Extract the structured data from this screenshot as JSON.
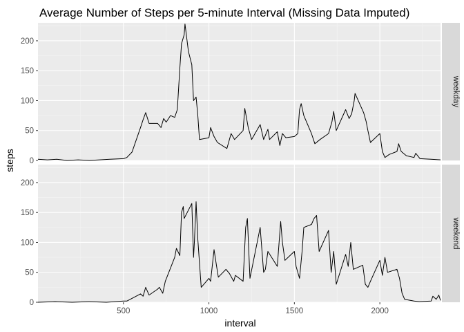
{
  "chart_data": {
    "type": "line",
    "title": "Average Number of Steps per 5-minute Interval (Missing Data Imputed)",
    "xlabel": "interval",
    "ylabel": "steps",
    "xlim": [
      0,
      2355
    ],
    "ylim": [
      0,
      230
    ],
    "x_ticks": [
      500,
      1000,
      1500,
      2000
    ],
    "y_ticks": [
      0,
      50,
      100,
      150,
      200
    ],
    "grid": true,
    "facet": "rows",
    "colors": {
      "panel_bg": "#ebebeb",
      "grid_major": "#ffffff",
      "grid_minor": "#f5f5f5",
      "strip_bg": "#d9d9d9",
      "line": "#000000"
    },
    "series": [
      {
        "name": "weekday",
        "points": [
          [
            0,
            2
          ],
          [
            55,
            1
          ],
          [
            110,
            2
          ],
          [
            170,
            0
          ],
          [
            235,
            1
          ],
          [
            300,
            0
          ],
          [
            360,
            1
          ],
          [
            420,
            2
          ],
          [
            500,
            3
          ],
          [
            520,
            5
          ],
          [
            550,
            14
          ],
          [
            600,
            55
          ],
          [
            615,
            68
          ],
          [
            630,
            80
          ],
          [
            650,
            62
          ],
          [
            700,
            62
          ],
          [
            720,
            55
          ],
          [
            735,
            70
          ],
          [
            750,
            64
          ],
          [
            775,
            75
          ],
          [
            800,
            72
          ],
          [
            815,
            85
          ],
          [
            830,
            155
          ],
          [
            840,
            195
          ],
          [
            850,
            205
          ],
          [
            855,
            210
          ],
          [
            860,
            228
          ],
          [
            870,
            205
          ],
          [
            880,
            182
          ],
          [
            900,
            160
          ],
          [
            910,
            100
          ],
          [
            925,
            106
          ],
          [
            935,
            75
          ],
          [
            945,
            35
          ],
          [
            1000,
            38
          ],
          [
            1010,
            55
          ],
          [
            1030,
            40
          ],
          [
            1050,
            30
          ],
          [
            1105,
            20
          ],
          [
            1130,
            45
          ],
          [
            1150,
            35
          ],
          [
            1200,
            50
          ],
          [
            1210,
            87
          ],
          [
            1230,
            55
          ],
          [
            1250,
            35
          ],
          [
            1300,
            60
          ],
          [
            1320,
            35
          ],
          [
            1345,
            52
          ],
          [
            1355,
            35
          ],
          [
            1400,
            48
          ],
          [
            1415,
            25
          ],
          [
            1430,
            45
          ],
          [
            1450,
            38
          ],
          [
            1500,
            40
          ],
          [
            1520,
            45
          ],
          [
            1530,
            85
          ],
          [
            1540,
            95
          ],
          [
            1555,
            75
          ],
          [
            1600,
            45
          ],
          [
            1620,
            28
          ],
          [
            1650,
            35
          ],
          [
            1700,
            45
          ],
          [
            1720,
            65
          ],
          [
            1730,
            82
          ],
          [
            1745,
            50
          ],
          [
            1800,
            85
          ],
          [
            1820,
            70
          ],
          [
            1835,
            78
          ],
          [
            1850,
            100
          ],
          [
            1855,
            112
          ],
          [
            1905,
            80
          ],
          [
            1920,
            65
          ],
          [
            1930,
            50
          ],
          [
            1945,
            30
          ],
          [
            2000,
            45
          ],
          [
            2015,
            15
          ],
          [
            2030,
            5
          ],
          [
            2055,
            10
          ],
          [
            2100,
            15
          ],
          [
            2110,
            28
          ],
          [
            2125,
            15
          ],
          [
            2155,
            8
          ],
          [
            2200,
            5
          ],
          [
            2210,
            12
          ],
          [
            2235,
            3
          ],
          [
            2300,
            2
          ],
          [
            2355,
            1
          ]
        ]
      },
      {
        "name": "weekend",
        "points": [
          [
            0,
            0
          ],
          [
            100,
            1
          ],
          [
            200,
            0
          ],
          [
            300,
            1
          ],
          [
            400,
            0
          ],
          [
            500,
            2
          ],
          [
            520,
            2
          ],
          [
            540,
            5
          ],
          [
            600,
            14
          ],
          [
            615,
            10
          ],
          [
            630,
            25
          ],
          [
            650,
            12
          ],
          [
            700,
            22
          ],
          [
            710,
            25
          ],
          [
            730,
            15
          ],
          [
            745,
            35
          ],
          [
            800,
            75
          ],
          [
            810,
            90
          ],
          [
            830,
            78
          ],
          [
            840,
            150
          ],
          [
            850,
            160
          ],
          [
            855,
            140
          ],
          [
            900,
            165
          ],
          [
            910,
            75
          ],
          [
            915,
            100
          ],
          [
            925,
            168
          ],
          [
            935,
            105
          ],
          [
            955,
            25
          ],
          [
            1000,
            40
          ],
          [
            1010,
            35
          ],
          [
            1030,
            88
          ],
          [
            1045,
            60
          ],
          [
            1055,
            42
          ],
          [
            1100,
            55
          ],
          [
            1120,
            48
          ],
          [
            1145,
            35
          ],
          [
            1155,
            45
          ],
          [
            1200,
            35
          ],
          [
            1215,
            125
          ],
          [
            1225,
            140
          ],
          [
            1240,
            40
          ],
          [
            1300,
            125
          ],
          [
            1320,
            50
          ],
          [
            1330,
            55
          ],
          [
            1345,
            85
          ],
          [
            1400,
            60
          ],
          [
            1420,
            135
          ],
          [
            1430,
            100
          ],
          [
            1445,
            70
          ],
          [
            1500,
            85
          ],
          [
            1510,
            60
          ],
          [
            1530,
            40
          ],
          [
            1545,
            85
          ],
          [
            1555,
            125
          ],
          [
            1600,
            130
          ],
          [
            1615,
            140
          ],
          [
            1630,
            145
          ],
          [
            1645,
            85
          ],
          [
            1700,
            120
          ],
          [
            1715,
            50
          ],
          [
            1730,
            85
          ],
          [
            1745,
            30
          ],
          [
            1800,
            80
          ],
          [
            1815,
            60
          ],
          [
            1830,
            100
          ],
          [
            1845,
            55
          ],
          [
            1900,
            62
          ],
          [
            1915,
            30
          ],
          [
            1930,
            25
          ],
          [
            1945,
            35
          ],
          [
            2000,
            70
          ],
          [
            2015,
            45
          ],
          [
            2030,
            75
          ],
          [
            2045,
            50
          ],
          [
            2100,
            55
          ],
          [
            2115,
            40
          ],
          [
            2130,
            15
          ],
          [
            2145,
            5
          ],
          [
            2200,
            2
          ],
          [
            2230,
            1
          ],
          [
            2300,
            2
          ],
          [
            2310,
            10
          ],
          [
            2330,
            5
          ],
          [
            2345,
            12
          ],
          [
            2355,
            3
          ]
        ]
      }
    ]
  }
}
